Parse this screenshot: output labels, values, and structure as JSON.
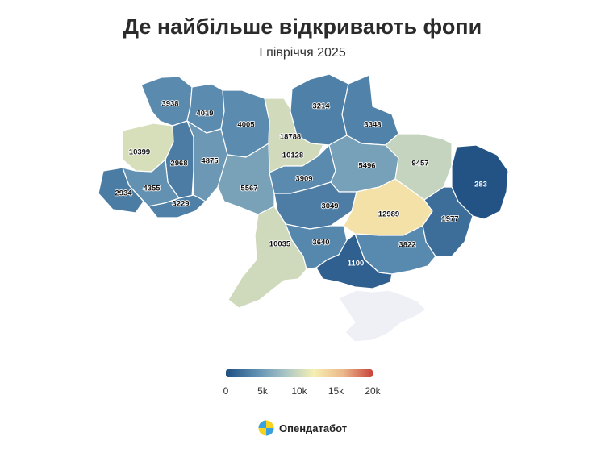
{
  "title": "Де найбільше відкривають фопи",
  "subtitle": "І півріччя 2025",
  "legend": {
    "min": 0,
    "max": 20000,
    "ticks": [
      "0",
      "5k",
      "10k",
      "15k",
      "20k"
    ],
    "colors": [
      "#1f4f82",
      "#5b8cb0",
      "#a7c4c6",
      "#f6efb2",
      "#ebb78b",
      "#c8453b"
    ]
  },
  "regions": [
    {
      "name": "Волинська",
      "value": 3938,
      "label": "3938"
    },
    {
      "name": "Рівненська",
      "value": 4019,
      "label": "4019"
    },
    {
      "name": "Житомирська",
      "value": 4005,
      "label": "4005"
    },
    {
      "name": "м. Київ",
      "value": 18788,
      "label": "18788"
    },
    {
      "name": "Київська",
      "value": 10128,
      "label": "10128"
    },
    {
      "name": "Чернігівська",
      "value": 3214,
      "label": "3214"
    },
    {
      "name": "Сумська",
      "value": 3348,
      "label": "3348"
    },
    {
      "name": "Львівська",
      "value": 10399,
      "label": "10399"
    },
    {
      "name": "Тернопільська",
      "value": 2968,
      "label": "2968"
    },
    {
      "name": "Хмельницька",
      "value": 4875,
      "label": "4875"
    },
    {
      "name": "Вінницька",
      "value": 5567,
      "label": "5567"
    },
    {
      "name": "Черкаська",
      "value": 3909,
      "label": "3909"
    },
    {
      "name": "Полтавська",
      "value": 5496,
      "label": "5496"
    },
    {
      "name": "Харківська",
      "value": 9457,
      "label": "9457"
    },
    {
      "name": "Луганська",
      "value": 283,
      "label": "283"
    },
    {
      "name": "Закарпатська",
      "value": 2934,
      "label": "2934"
    },
    {
      "name": "Івано-Франківська",
      "value": 4355,
      "label": "4355"
    },
    {
      "name": "Чернівецька",
      "value": 3229,
      "label": "3229"
    },
    {
      "name": "Кіровоградська",
      "value": 3049,
      "label": "3049"
    },
    {
      "name": "Дніпропетровська",
      "value": 12989,
      "label": "12989"
    },
    {
      "name": "Донецька",
      "value": 1977,
      "label": "1977"
    },
    {
      "name": "Одеська",
      "value": 10035,
      "label": "10035"
    },
    {
      "name": "Миколаївська",
      "value": 3640,
      "label": "3640"
    },
    {
      "name": "Херсонська",
      "value": 1100,
      "label": "1100"
    },
    {
      "name": "Запорізька",
      "value": 3822,
      "label": "3822"
    },
    {
      "name": "АР Крим",
      "value": null,
      "label": ""
    }
  ],
  "no_data_color": "#eef0f5",
  "brand": {
    "name": "Опендатабот"
  }
}
